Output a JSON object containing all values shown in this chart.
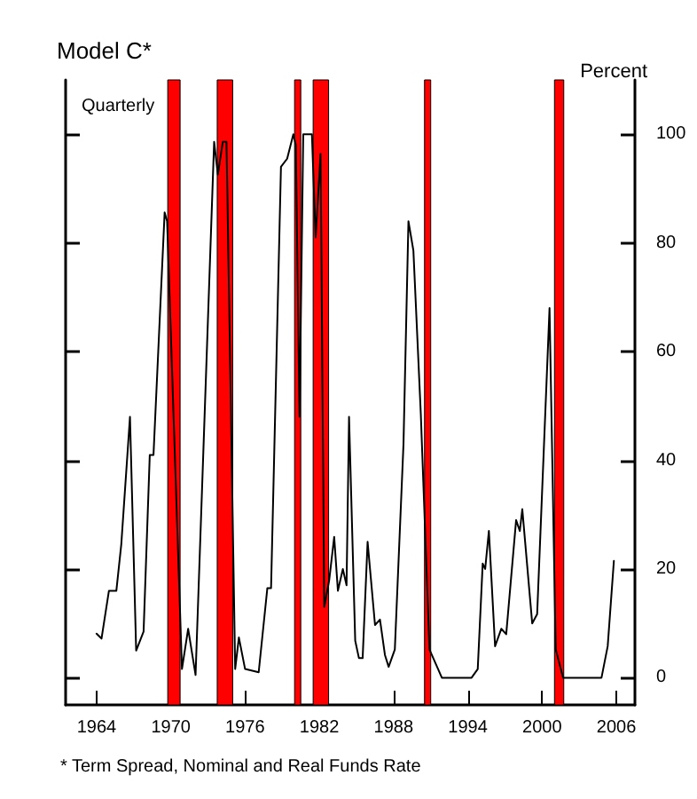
{
  "chart_data": {
    "type": "line",
    "title": "Model C*",
    "subtitle": "Quarterly",
    "ylabel": "Percent",
    "annotations": [
      "* Term Spread, Nominal and Real Funds Rate"
    ],
    "x": [
      1964.0,
      1964.4,
      1965.0,
      1965.6,
      1966.0,
      1966.7,
      1967.2,
      1967.8,
      1968.3,
      1968.6,
      1969.5,
      1969.7,
      1970.9,
      1971.4,
      1972.0,
      1973.5,
      1973.8,
      1974.2,
      1974.5,
      1975.2,
      1975.5,
      1976.0,
      1977.1,
      1977.8,
      1978.1,
      1978.9,
      1979.4,
      1979.9,
      1980.1,
      1980.4,
      1980.7,
      1981.4,
      1981.7,
      1982.1,
      1982.4,
      1982.8,
      1983.2,
      1983.5,
      1983.9,
      1984.2,
      1984.4,
      1984.9,
      1985.2,
      1985.5,
      1985.9,
      1986.5,
      1986.9,
      1987.3,
      1987.6,
      1988.1,
      1988.8,
      1989.2,
      1989.6,
      1990.2,
      1990.9,
      1991.9,
      1994.3,
      1994.8,
      1995.2,
      1995.4,
      1995.7,
      1996.2,
      1996.7,
      1997.1,
      1997.9,
      1998.2,
      1998.4,
      1999.2,
      1999.6,
      2000.6,
      2001.1,
      2001.7,
      2004.8,
      2005.3,
      2005.8
    ],
    "series": [
      {
        "color": "#000000",
        "values": [
          8.1,
          7.2,
          16,
          16,
          24.6,
          48,
          5,
          8.5,
          41,
          41,
          85.6,
          84,
          1.6,
          9,
          0.5,
          98.6,
          92.6,
          98.6,
          98.6,
          1.6,
          7.4,
          1.6,
          1,
          16.5,
          16.5,
          94,
          95.5,
          100,
          98,
          48,
          100,
          100,
          81,
          96.4,
          13,
          18,
          25.9,
          16,
          20,
          17,
          48,
          6.8,
          3.6,
          3.6,
          25,
          9.7,
          10.7,
          4.2,
          2,
          5.2,
          43,
          84,
          78.6,
          48.5,
          5.2,
          0,
          0,
          1.6,
          21,
          20,
          27,
          5.8,
          9,
          8,
          29,
          27,
          31,
          10,
          11.7,
          68,
          5.2,
          0,
          0,
          5.8,
          21.5
        ]
      }
    ],
    "xlim": [
      1961.5,
      2007.5
    ],
    "xticks": [
      1964,
      1970,
      1976,
      1982,
      1988,
      1994,
      2000,
      2006
    ],
    "ylim": [
      -5,
      110
    ],
    "yticks": [
      0,
      20,
      40,
      60,
      80,
      100
    ],
    "bands": [
      {
        "axis": "x",
        "from": 1969.75,
        "to": 1970.75,
        "color": "#ff0000"
      },
      {
        "axis": "x",
        "from": 1973.75,
        "to": 1975.0,
        "color": "#ff0000"
      },
      {
        "axis": "x",
        "from": 1980.0,
        "to": 1980.5,
        "color": "#ff0000"
      },
      {
        "axis": "x",
        "from": 1981.5,
        "to": 1982.75,
        "color": "#ff0000"
      },
      {
        "axis": "x",
        "from": 1990.5,
        "to": 1991.0,
        "color": "#ff0000"
      },
      {
        "axis": "x",
        "from": 2001.0,
        "to": 2001.75,
        "color": "#ff0000"
      }
    ],
    "grid": false,
    "marker": "none",
    "line_style": "solid"
  }
}
